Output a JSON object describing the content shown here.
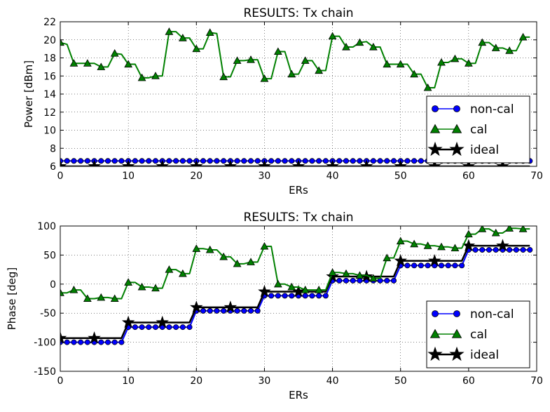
{
  "chart_data": [
    {
      "type": "line",
      "title": "RESULTS: Tx chain",
      "xlabel": "ERs",
      "ylabel": "Power [dBm]",
      "xlim": [
        0,
        70
      ],
      "ylim": [
        6,
        22
      ],
      "xticks": [
        0,
        10,
        20,
        30,
        40,
        50,
        60,
        70
      ],
      "yticks": [
        6,
        8,
        10,
        12,
        14,
        16,
        18,
        20,
        22
      ],
      "grid": true,
      "legend": "bottom-right",
      "series": [
        {
          "name": "non-cal",
          "color": "#0000ff",
          "marker": "circle",
          "values": [
            6.6,
            6.6,
            6.6,
            6.6,
            6.6,
            6.6,
            6.6,
            6.6,
            6.6,
            6.6,
            6.6,
            6.6,
            6.6,
            6.6,
            6.6,
            6.6,
            6.6,
            6.6,
            6.6,
            6.6,
            6.6,
            6.6,
            6.6,
            6.6,
            6.6,
            6.6,
            6.6,
            6.6,
            6.6,
            6.6,
            6.6,
            6.6,
            6.6,
            6.6,
            6.6,
            6.6,
            6.6,
            6.6,
            6.6,
            6.6,
            6.6,
            6.6,
            6.6,
            6.6,
            6.6,
            6.6,
            6.6,
            6.6,
            6.6,
            6.6,
            6.6,
            6.6,
            6.6,
            6.6,
            6.6,
            6.6,
            6.6,
            6.6,
            6.6,
            6.6,
            6.6,
            6.6,
            6.6,
            6.6,
            6.6,
            6.6,
            6.6,
            6.6,
            6.6,
            6.6
          ]
        },
        {
          "name": "cal",
          "color": "#008000",
          "marker": "triangle",
          "values": [
            19.7,
            19.5,
            17.4,
            17.4,
            17.4,
            17.4,
            17.0,
            17.0,
            18.5,
            18.4,
            17.3,
            17.3,
            15.8,
            15.8,
            16.0,
            16.0,
            20.9,
            20.9,
            20.2,
            20.2,
            19.0,
            19.0,
            20.8,
            20.7,
            15.9,
            15.9,
            17.7,
            17.7,
            17.8,
            17.8,
            15.7,
            15.7,
            18.7,
            18.7,
            16.2,
            16.2,
            17.7,
            17.7,
            16.6,
            16.6,
            20.4,
            20.4,
            19.2,
            19.2,
            19.7,
            19.8,
            19.2,
            19.2,
            17.3,
            17.3,
            17.3,
            17.3,
            16.2,
            16.2,
            14.7,
            14.7,
            17.5,
            17.5,
            17.9,
            17.9,
            17.4,
            17.4,
            19.7,
            19.7,
            19.1,
            19.1,
            18.8,
            18.8,
            20.3,
            20.3
          ]
        },
        {
          "name": "ideal",
          "color": "#000000",
          "marker": "star",
          "values": [
            6.0,
            6.0,
            6.0,
            6.0,
            6.0,
            6.0,
            6.0,
            6.0,
            6.0,
            6.0,
            6.0,
            6.0,
            6.0,
            6.0,
            6.0,
            6.0,
            6.0,
            6.0,
            6.0,
            6.0,
            6.0,
            6.0,
            6.0,
            6.0,
            6.0,
            6.0,
            6.0,
            6.0,
            6.0,
            6.0,
            6.0,
            6.0,
            6.0,
            6.0,
            6.0,
            6.0,
            6.0,
            6.0,
            6.0,
            6.0,
            6.0,
            6.0,
            6.0,
            6.0,
            6.0,
            6.0,
            6.0,
            6.0,
            6.0,
            6.0,
            6.0,
            6.0,
            6.0,
            6.0,
            6.0,
            6.0,
            6.0,
            6.0,
            6.0,
            6.0,
            6.0,
            6.0,
            6.0,
            6.0,
            6.0,
            6.0,
            6.0,
            6.0,
            6.0,
            6.0
          ]
        }
      ]
    },
    {
      "type": "line",
      "title": "RESULTS: Tx chain",
      "xlabel": "ERs",
      "ylabel": "Phase [deg]",
      "xlim": [
        0,
        70
      ],
      "ylim": [
        -150,
        100
      ],
      "xticks": [
        0,
        10,
        20,
        30,
        40,
        50,
        60,
        70
      ],
      "yticks": [
        -150,
        -100,
        -50,
        0,
        50,
        100
      ],
      "grid": true,
      "legend": "bottom-right",
      "series": [
        {
          "name": "non-cal",
          "color": "#0000ff",
          "marker": "circle",
          "values": [
            -100,
            -100,
            -100,
            -100,
            -100,
            -100,
            -100,
            -100,
            -100,
            -100,
            -74,
            -74,
            -74,
            -74,
            -74,
            -74,
            -74,
            -74,
            -74,
            -74,
            -46,
            -46,
            -46,
            -46,
            -46,
            -46,
            -46,
            -46,
            -46,
            -46,
            -20,
            -20,
            -20,
            -20,
            -20,
            -20,
            -20,
            -20,
            -20,
            -20,
            6,
            6,
            6,
            6,
            6,
            6,
            6,
            6,
            6,
            6,
            32,
            32,
            32,
            32,
            32,
            32,
            32,
            32,
            32,
            32,
            59,
            59,
            59,
            59,
            59,
            59,
            59,
            59,
            59,
            59
          ]
        },
        {
          "name": "cal",
          "color": "#008000",
          "marker": "triangle",
          "values": [
            -15,
            -15,
            -10,
            -10,
            -25,
            -25,
            -23,
            -23,
            -25,
            -25,
            3,
            3,
            -5,
            -5,
            -7,
            -7,
            25,
            25,
            18,
            18,
            61,
            61,
            59,
            59,
            47,
            47,
            35,
            35,
            38,
            38,
            65,
            65,
            0,
            0,
            -5,
            -5,
            -10,
            -10,
            -10,
            -10,
            20,
            20,
            18,
            18,
            15,
            15,
            10,
            10,
            45,
            45,
            74,
            74,
            69,
            69,
            66,
            66,
            64,
            64,
            62,
            62,
            86,
            86,
            95,
            95,
            88,
            88,
            96,
            96,
            95,
            95
          ]
        },
        {
          "name": "ideal",
          "color": "#000000",
          "marker": "star",
          "values": [
            -93,
            -93,
            -93,
            -93,
            -93,
            -93,
            -93,
            -93,
            -93,
            -93,
            -66,
            -66,
            -66,
            -66,
            -66,
            -66,
            -66,
            -66,
            -66,
            -66,
            -40,
            -40,
            -40,
            -40,
            -40,
            -40,
            -40,
            -40,
            -40,
            -40,
            -13,
            -13,
            -13,
            -13,
            -13,
            -13,
            -13,
            -13,
            -13,
            -13,
            13,
            13,
            13,
            13,
            13,
            13,
            13,
            13,
            13,
            13,
            40,
            40,
            40,
            40,
            40,
            40,
            40,
            40,
            40,
            40,
            66,
            66,
            66,
            66,
            66,
            66,
            66,
            66,
            66,
            66
          ]
        }
      ]
    }
  ]
}
